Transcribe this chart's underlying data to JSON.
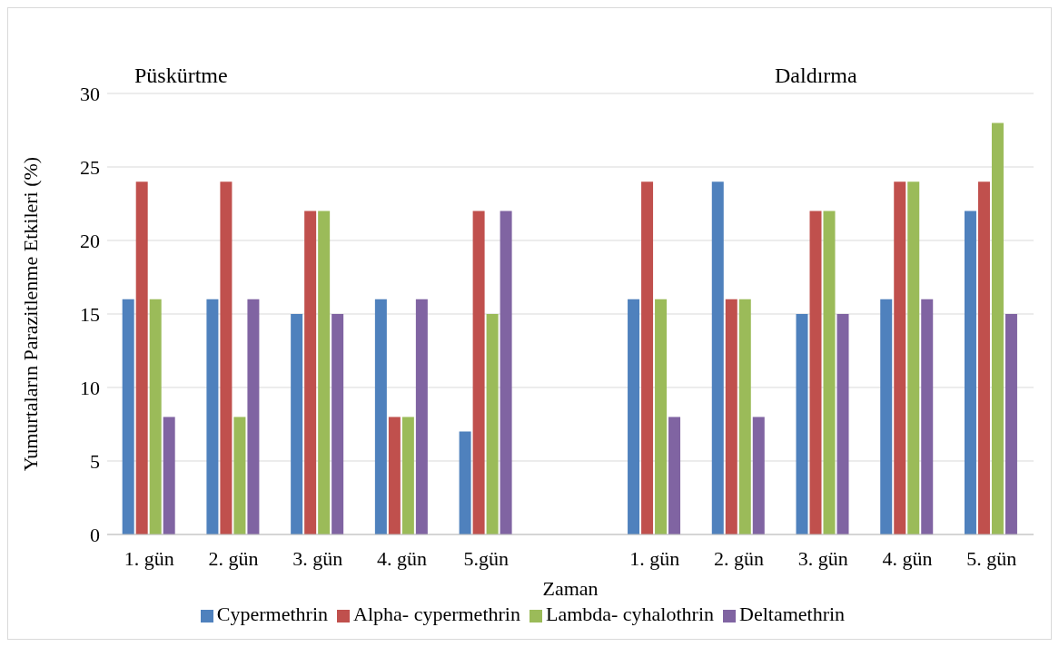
{
  "chart_data": {
    "type": "bar",
    "ylabel": "Yumurtaların Parazitlenme Etkileri (%)",
    "xlabel": "Zaman",
    "categories": [
      "1. gün",
      "2. gün",
      "3. gün",
      "4. gün",
      "5.gün",
      null,
      "1. gün",
      "2. gün",
      "3. gün",
      "4. gün",
      "5. gün"
    ],
    "series": [
      {
        "name": "Cypermethrin",
        "color": "#4f81bd",
        "values": [
          16,
          16,
          15,
          16,
          7,
          null,
          16,
          24,
          15,
          16,
          22
        ]
      },
      {
        "name": "Alpha- cypermethrin",
        "color": "#c0504d",
        "values": [
          24,
          24,
          22,
          8,
          22,
          null,
          24,
          16,
          22,
          24,
          24
        ]
      },
      {
        "name": "Lambda- cyhalothrin",
        "color": "#9bbb59",
        "values": [
          16,
          8,
          22,
          8,
          15,
          null,
          16,
          16,
          22,
          24,
          28
        ]
      },
      {
        "name": "Deltamethrin",
        "color": "#8064a2",
        "values": [
          8,
          16,
          15,
          16,
          22,
          null,
          8,
          8,
          15,
          16,
          15
        ]
      }
    ],
    "annotations": [
      "Püskürtme",
      "Daldırma"
    ],
    "ylim": [
      0,
      30
    ],
    "yticks": [
      0,
      5,
      10,
      15,
      20,
      25,
      30
    ],
    "grid": "y",
    "legend": "bottom"
  }
}
